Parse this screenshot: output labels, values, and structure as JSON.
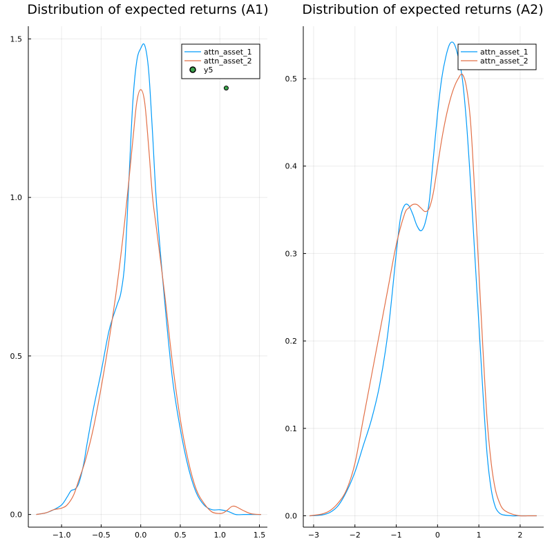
{
  "chart_data": [
    {
      "type": "line",
      "title": "Distribution of expected returns (A1)",
      "xlabel": "",
      "ylabel": "",
      "xlim": [
        -1.42,
        1.6
      ],
      "ylim": [
        -0.04,
        1.54
      ],
      "x_ticks": [
        -1.0,
        -0.5,
        0.0,
        0.5,
        1.0,
        1.5
      ],
      "x_tick_labels": [
        "−1.0",
        "−0.5",
        "0.0",
        "0.5",
        "1.0",
        "1.5"
      ],
      "y_ticks": [
        0.0,
        0.5,
        1.0,
        1.5
      ],
      "y_tick_labels": [
        "0.0",
        "0.5",
        "1.0",
        "1.5"
      ],
      "grid": true,
      "legend": "top-right",
      "series": [
        {
          "name": "attn_asset_1",
          "color": "#009af9",
          "x": [
            -1.32,
            -1.2,
            -1.1,
            -1.0,
            -0.93,
            -0.88,
            -0.83,
            -0.78,
            -0.72,
            -0.68,
            -0.6,
            -0.5,
            -0.4,
            -0.3,
            -0.25,
            -0.2,
            -0.15,
            -0.1,
            -0.05,
            0.0,
            0.05,
            0.1,
            0.15,
            0.2,
            0.3,
            0.4,
            0.5,
            0.6,
            0.7,
            0.8,
            0.9,
            1.0,
            1.1,
            1.2,
            1.3,
            1.4,
            1.52
          ],
          "y": [
            0.0,
            0.005,
            0.015,
            0.03,
            0.055,
            0.075,
            0.08,
            0.1,
            0.16,
            0.22,
            0.33,
            0.45,
            0.58,
            0.66,
            0.7,
            0.8,
            1.05,
            1.3,
            1.43,
            1.47,
            1.48,
            1.4,
            1.2,
            0.98,
            0.68,
            0.43,
            0.27,
            0.15,
            0.07,
            0.03,
            0.015,
            0.015,
            0.01,
            0.0,
            0.0,
            0.0,
            0.0
          ]
        },
        {
          "name": "attn_asset_2",
          "color": "#e26f46",
          "x": [
            -1.32,
            -1.2,
            -1.1,
            -1.0,
            -0.93,
            -0.85,
            -0.78,
            -0.7,
            -0.6,
            -0.5,
            -0.4,
            -0.3,
            -0.2,
            -0.1,
            -0.05,
            0.0,
            0.05,
            0.1,
            0.15,
            0.2,
            0.3,
            0.4,
            0.5,
            0.6,
            0.7,
            0.8,
            0.9,
            1.0,
            1.05,
            1.1,
            1.15,
            1.2,
            1.3,
            1.4,
            1.52
          ],
          "y": [
            0.0,
            0.005,
            0.015,
            0.02,
            0.03,
            0.06,
            0.11,
            0.17,
            0.27,
            0.4,
            0.55,
            0.72,
            0.93,
            1.18,
            1.3,
            1.34,
            1.3,
            1.16,
            1.0,
            0.9,
            0.7,
            0.48,
            0.3,
            0.17,
            0.08,
            0.035,
            0.008,
            0.003,
            0.006,
            0.015,
            0.025,
            0.025,
            0.012,
            0.002,
            0.0
          ]
        },
        {
          "name": "y5",
          "type": "scatter",
          "color": "#3da44d",
          "x": [
            1.08
          ],
          "y": [
            1.345
          ]
        }
      ]
    },
    {
      "type": "line",
      "title": "Distribution of expected returns (A2)",
      "xlabel": "",
      "ylabel": "",
      "xlim": [
        -3.25,
        2.57
      ],
      "ylim": [
        -0.013,
        0.56
      ],
      "x_ticks": [
        -3,
        -2,
        -1,
        0,
        1,
        2
      ],
      "x_tick_labels": [
        "−3",
        "−2",
        "−1",
        "0",
        "1",
        "2"
      ],
      "y_ticks": [
        0.0,
        0.1,
        0.2,
        0.3,
        0.4,
        0.5
      ],
      "y_tick_labels": [
        "0.0",
        "0.1",
        "0.2",
        "0.3",
        "0.4",
        "0.5"
      ],
      "grid": true,
      "legend": "top-right",
      "series": [
        {
          "name": "attn_asset_1",
          "color": "#009af9",
          "x": [
            -3.1,
            -2.8,
            -2.6,
            -2.4,
            -2.2,
            -2.0,
            -1.8,
            -1.6,
            -1.4,
            -1.2,
            -1.0,
            -0.9,
            -0.8,
            -0.7,
            -0.6,
            -0.5,
            -0.4,
            -0.3,
            -0.2,
            -0.1,
            0.0,
            0.1,
            0.2,
            0.3,
            0.4,
            0.5,
            0.6,
            0.7,
            0.8,
            0.9,
            1.0,
            1.1,
            1.2,
            1.3,
            1.4,
            1.5,
            1.6,
            1.8,
            2.0,
            2.2,
            2.4
          ],
          "y": [
            0.0,
            0.001,
            0.004,
            0.012,
            0.028,
            0.05,
            0.08,
            0.11,
            0.15,
            0.21,
            0.3,
            0.34,
            0.355,
            0.355,
            0.345,
            0.332,
            0.326,
            0.335,
            0.36,
            0.41,
            0.46,
            0.5,
            0.525,
            0.54,
            0.54,
            0.525,
            0.5,
            0.45,
            0.38,
            0.3,
            0.22,
            0.14,
            0.07,
            0.03,
            0.01,
            0.003,
            0.001,
            0.0,
            0.0,
            0.0,
            0.0
          ]
        },
        {
          "name": "attn_asset_2",
          "color": "#e26f46",
          "x": [
            -3.1,
            -2.8,
            -2.6,
            -2.4,
            -2.2,
            -2.0,
            -1.8,
            -1.6,
            -1.4,
            -1.2,
            -1.0,
            -0.8,
            -0.7,
            -0.6,
            -0.5,
            -0.4,
            -0.3,
            -0.2,
            -0.1,
            0.0,
            0.1,
            0.2,
            0.3,
            0.4,
            0.5,
            0.6,
            0.7,
            0.8,
            0.9,
            1.0,
            1.1,
            1.2,
            1.3,
            1.4,
            1.5,
            1.6,
            1.8,
            2.0,
            2.2,
            2.4
          ],
          "y": [
            0.0,
            0.002,
            0.006,
            0.015,
            0.03,
            0.06,
            0.11,
            0.16,
            0.21,
            0.26,
            0.31,
            0.345,
            0.352,
            0.356,
            0.356,
            0.352,
            0.348,
            0.352,
            0.37,
            0.4,
            0.43,
            0.455,
            0.475,
            0.49,
            0.5,
            0.505,
            0.49,
            0.45,
            0.37,
            0.28,
            0.19,
            0.11,
            0.06,
            0.03,
            0.015,
            0.007,
            0.002,
            0.0,
            0.0,
            0.0
          ]
        }
      ]
    }
  ]
}
